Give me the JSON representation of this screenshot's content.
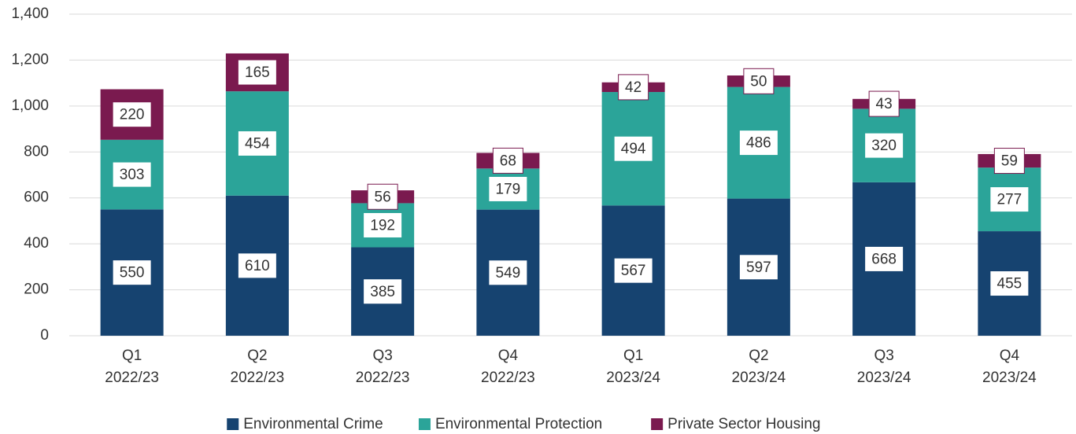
{
  "chart_data": {
    "type": "stacked_bar",
    "categories": [
      [
        "Q1",
        "2022/23"
      ],
      [
        "Q2",
        "2022/23"
      ],
      [
        "Q3",
        "2022/23"
      ],
      [
        "Q4",
        "2022/23"
      ],
      [
        "Q1",
        "2023/24"
      ],
      [
        "Q2",
        "2023/24"
      ],
      [
        "Q3",
        "2023/24"
      ],
      [
        "Q4",
        "2023/24"
      ]
    ],
    "series": [
      {
        "name": "Environmental Crime",
        "color": "#164370",
        "values": [
          550,
          610,
          385,
          549,
          567,
          597,
          668,
          455
        ]
      },
      {
        "name": "Environmental Protection",
        "color": "#2ba499",
        "values": [
          303,
          454,
          192,
          179,
          494,
          486,
          320,
          277
        ]
      },
      {
        "name": "Private Sector Housing",
        "color": "#7a1a4f",
        "values": [
          220,
          165,
          56,
          68,
          42,
          50,
          43,
          59
        ]
      }
    ],
    "ylim": [
      0,
      1400
    ],
    "yticks": [
      0,
      200,
      400,
      600,
      800,
      {
        "value": 1000,
        "label": "1,000"
      },
      {
        "value": 1200,
        "label": "1,200"
      },
      {
        "value": 1400,
        "label": "1,400"
      }
    ],
    "grid": true,
    "legend": "bottom"
  }
}
